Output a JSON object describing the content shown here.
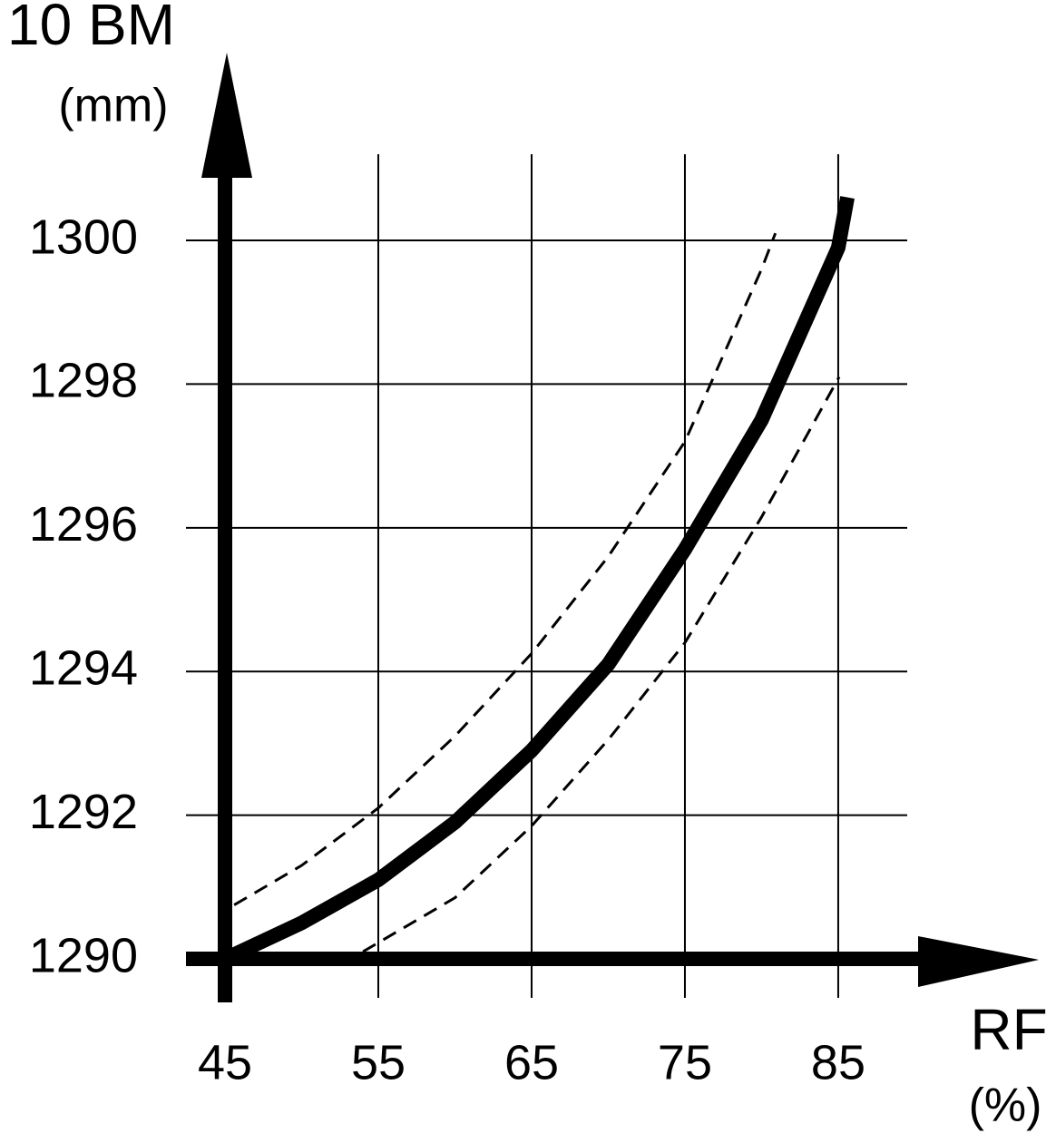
{
  "chart_data": {
    "type": "line",
    "y_label": "10 BM",
    "y_unit": "(mm)",
    "x_label": "RF",
    "x_unit": "(%)",
    "xlim": [
      45,
      89.5
    ],
    "ylim": [
      1290,
      1301.2
    ],
    "xticks": [
      45,
      55,
      65,
      75,
      85
    ],
    "yticks": [
      1290,
      1292,
      1294,
      1296,
      1298,
      1300
    ],
    "grid": true,
    "series": [
      {
        "color": "#000000",
        "style": "solid",
        "x": [
          45,
          50,
          55,
          60,
          65,
          70,
          75,
          80,
          85,
          85.6
        ],
        "values": [
          1290,
          1290.5,
          1291.1,
          1291.9,
          1292.9,
          1294.1,
          1295.7,
          1297.5,
          1299.9,
          1300.6
        ]
      },
      {
        "color": "#000000",
        "style": "dashed",
        "x": [
          45.6,
          50,
          55,
          60,
          65,
          70,
          75,
          80,
          80.9
        ],
        "values": [
          1290.75,
          1291.3,
          1292.1,
          1293.1,
          1294.25,
          1295.6,
          1297.2,
          1299.6,
          1300.1
        ]
      },
      {
        "color": "#000000",
        "style": "dashed",
        "x": [
          54,
          60,
          65,
          70,
          75,
          80,
          85.06
        ],
        "values": [
          1290.1,
          1290.85,
          1291.85,
          1293.05,
          1294.4,
          1296.15,
          1298.1
        ]
      }
    ]
  }
}
